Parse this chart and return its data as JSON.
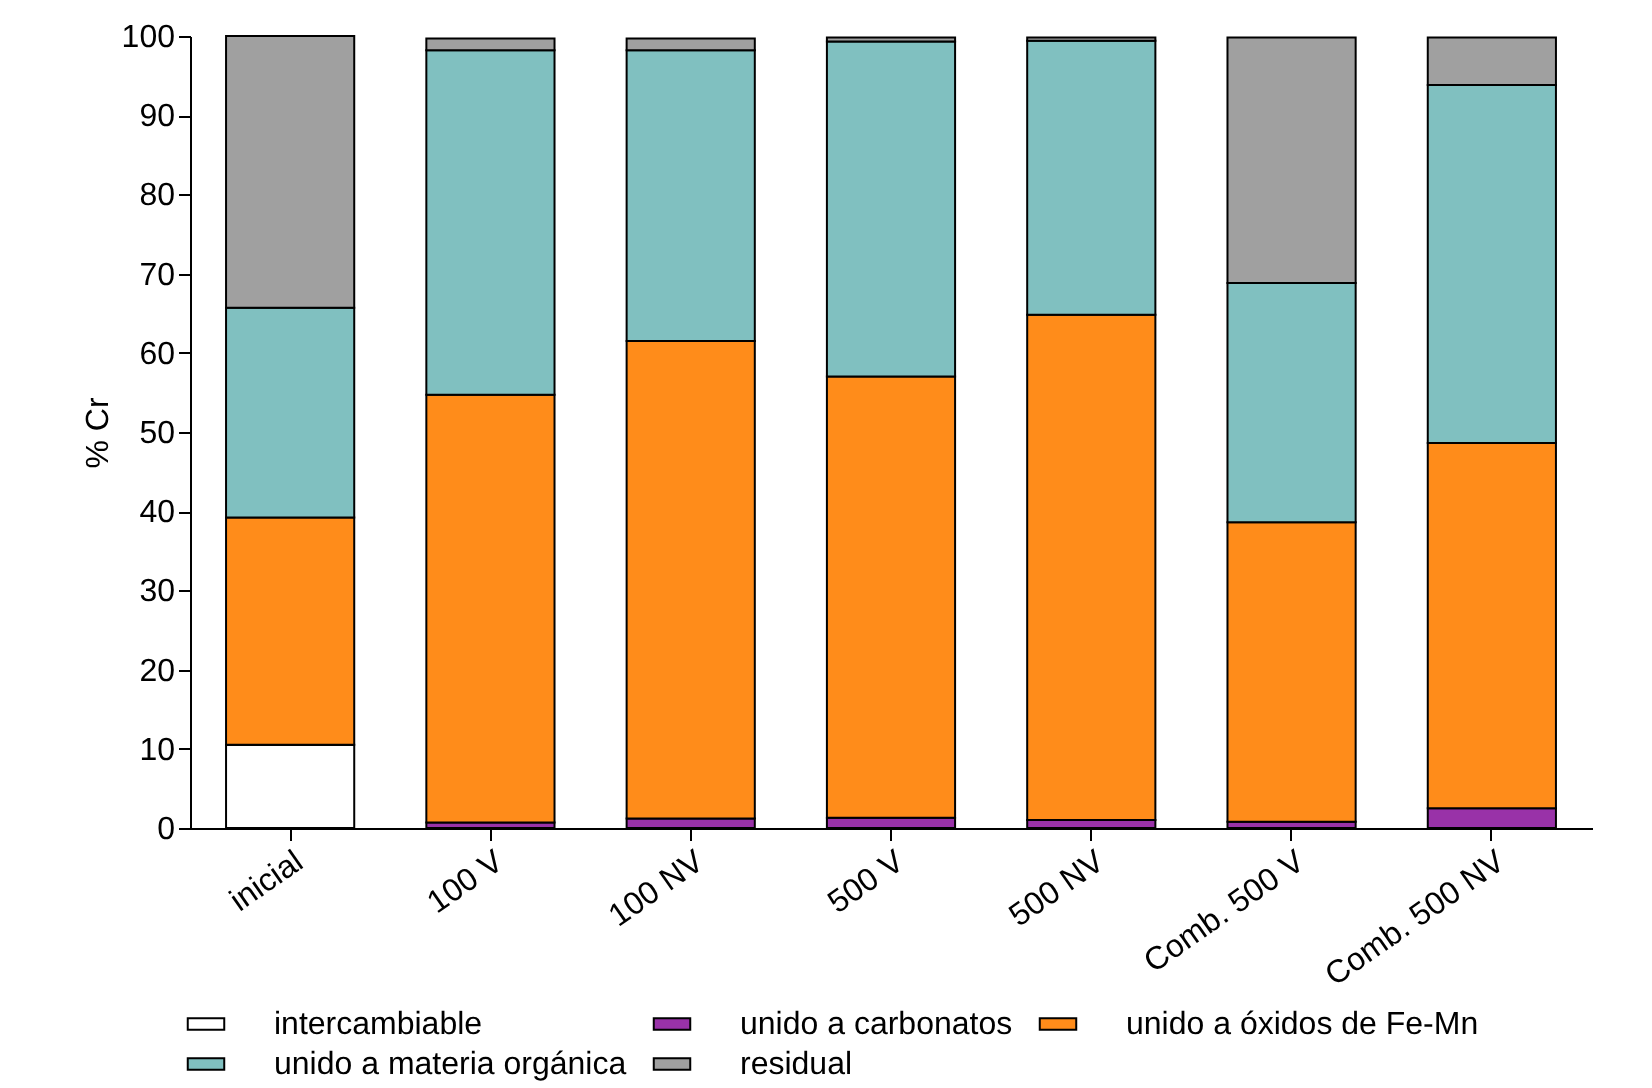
{
  "chart_data": {
    "type": "bar",
    "stacked": true,
    "ylabel": "% Cr",
    "legend": "bottom",
    "categories": [
      "inicial",
      "100 V",
      "100 NV",
      "500 V",
      "500 NV",
      "Comb. 500 V",
      "Comb. 500 NV"
    ],
    "ylim": [
      0,
      100
    ],
    "yticks": [
      0,
      10,
      20,
      30,
      40,
      50,
      60,
      70,
      80,
      90,
      100
    ],
    "series": [
      {
        "name": "intercambiable",
        "color": "#ffffff",
        "values": [
          10.5,
          null,
          null,
          null,
          null,
          null,
          null
        ]
      },
      {
        "name": "unido a carbonatos",
        "color": "#9932a8",
        "values": [
          0,
          0.7,
          1.2,
          1.3,
          1.0,
          0.8,
          2.5
        ]
      },
      {
        "name": "unido a óxidos de Fe-Mn",
        "color": "#ff8c1a",
        "values": [
          28.7,
          54,
          60.3,
          55.7,
          63.8,
          37.8,
          46.1
        ]
      },
      {
        "name": "unido a materia orgánica",
        "color": "#80c0c0",
        "values": [
          26.5,
          43.5,
          36.7,
          42.3,
          34.6,
          30.2,
          45.2
        ]
      },
      {
        "name": "residual",
        "color": "#a0a0a0",
        "values": [
          34.3,
          1.5,
          1.5,
          0.5,
          0.4,
          31,
          6
        ]
      }
    ]
  }
}
